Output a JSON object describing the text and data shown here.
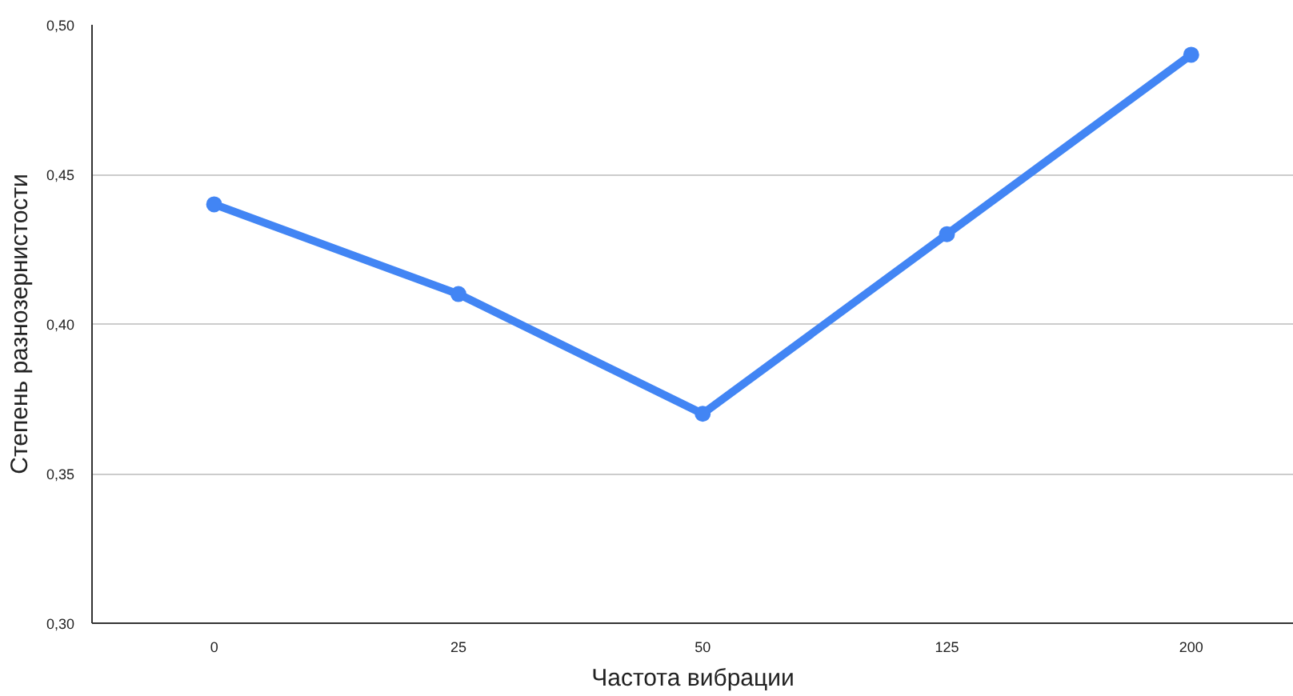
{
  "chart_data": {
    "type": "line",
    "xlabel": "Частота вибрации",
    "ylabel": "Степень разнозернистости",
    "categories": [
      "0",
      "25",
      "50",
      "125",
      "200"
    ],
    "series": [
      {
        "color": "#4285f4",
        "values": [
          0.44,
          0.41,
          0.37,
          0.43,
          0.49
        ]
      }
    ],
    "ylim": [
      0.3,
      0.5
    ],
    "yticks": [
      {
        "value": 0.3,
        "label": "0,30"
      },
      {
        "value": 0.35,
        "label": "0,35"
      },
      {
        "value": 0.4,
        "label": "0,40"
      },
      {
        "value": 0.45,
        "label": "0,45"
      },
      {
        "value": 0.5,
        "label": "0,50"
      }
    ],
    "grid": "y",
    "marker": "circle",
    "line_style": "solid"
  }
}
